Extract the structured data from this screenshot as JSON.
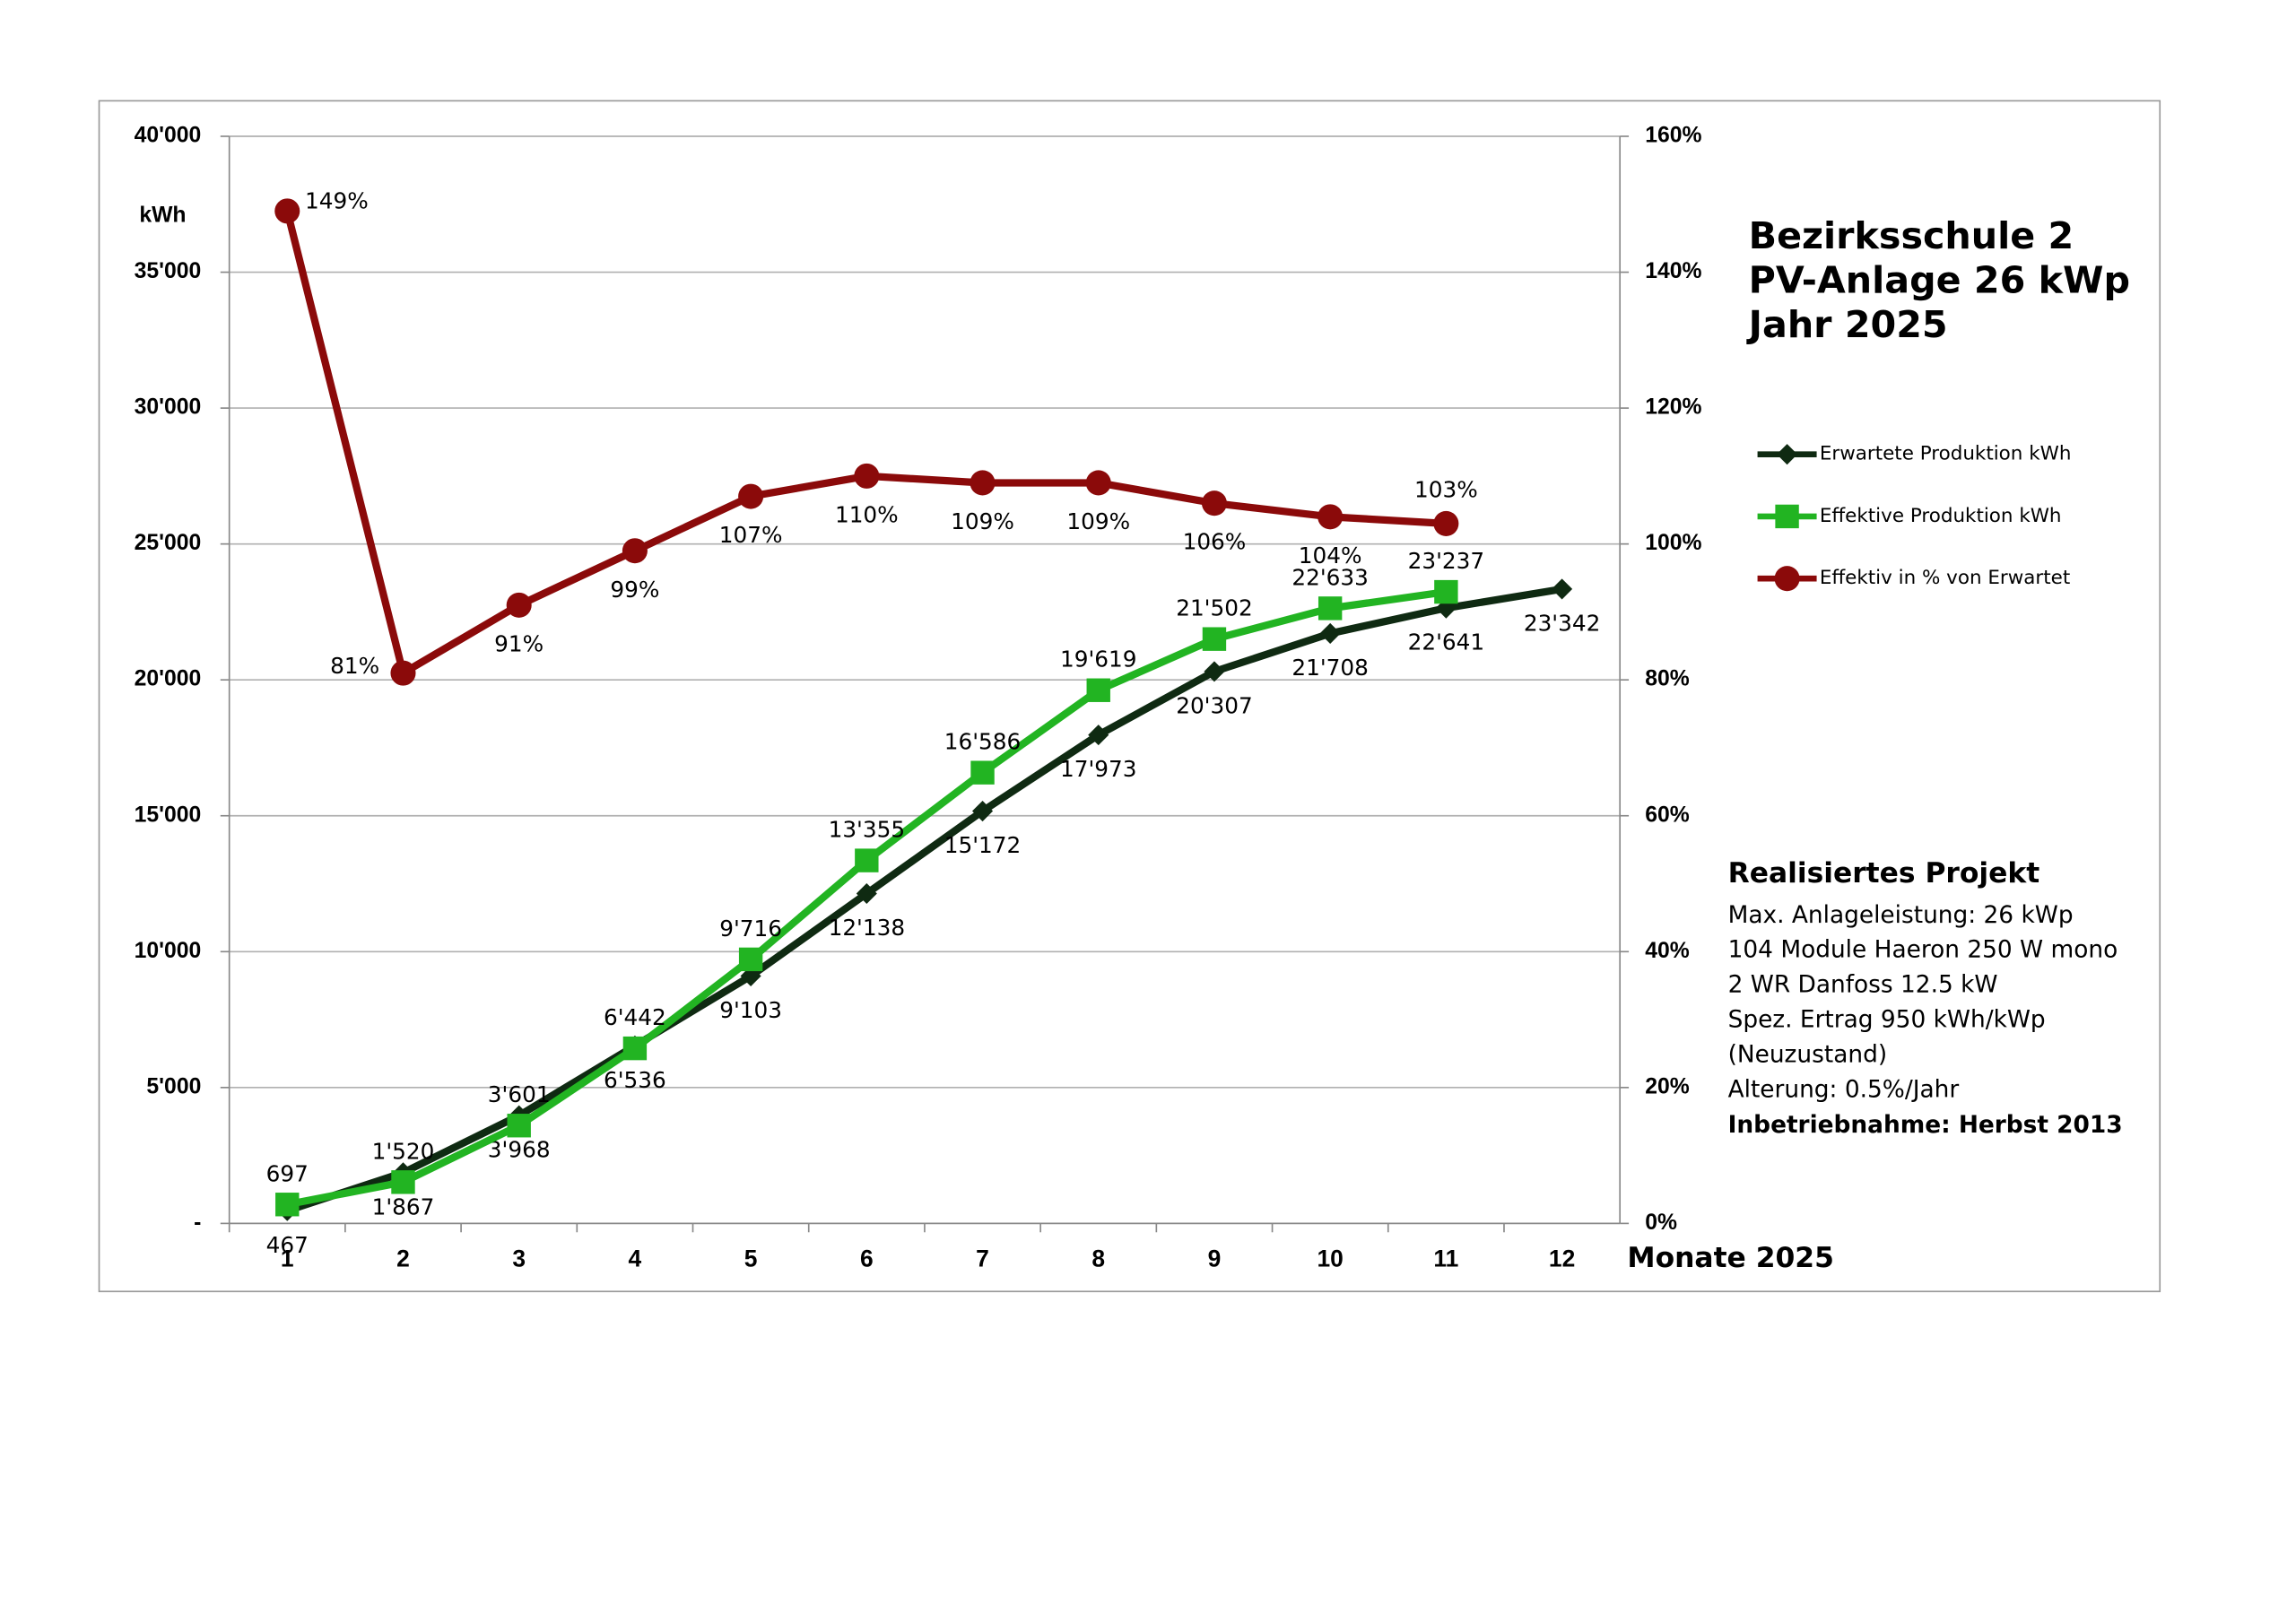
{
  "chart_data": {
    "type": "line",
    "title": [
      "Bezirksschule 2",
      "PV-Anlage 26 kWp",
      "Jahr 2025"
    ],
    "y_label": "kWh",
    "x_label": "Monate 2025",
    "categories": [
      "1",
      "2",
      "3",
      "4",
      "5",
      "6",
      "7",
      "8",
      "9",
      "10",
      "11",
      "12"
    ],
    "series": [
      {
        "name": "Erwartete Produktion kWh",
        "color": "#0f2a12",
        "marker": "diamond",
        "values": [
          467,
          1867,
          3968,
          6536,
          9103,
          12138,
          15172,
          17973,
          20307,
          21708,
          22641,
          23342
        ],
        "value_labels": [
          "467",
          "1'867",
          "3'968",
          "6'536",
          "9'103",
          "12'138",
          "15'172",
          "17'973",
          "20'307",
          "21'708",
          "22'641",
          "23'342"
        ]
      },
      {
        "name": "Effektive Produktion kWh",
        "color": "#22b422",
        "marker": "square",
        "values": [
          697,
          1520,
          3601,
          6442,
          9716,
          13355,
          16586,
          19619,
          21502,
          22633,
          23237,
          null
        ],
        "value_labels": [
          "697",
          "1'520",
          "3'601",
          "6'442",
          "9'716",
          "13'355",
          "16'586",
          "19'619",
          "21'502",
          "22'633",
          "23'237",
          null
        ]
      },
      {
        "name": "Effektiv in % von Erwartet",
        "color": "#8b0a0a",
        "marker": "circle",
        "axis": "y2",
        "values": [
          149,
          81,
          91,
          99,
          107,
          110,
          109,
          109,
          106,
          104,
          103,
          null
        ],
        "value_labels": [
          "149%",
          "81%",
          "91%",
          "99%",
          "107%",
          "110%",
          "109%",
          "109%",
          "106%",
          "104%",
          "103%",
          null
        ]
      }
    ],
    "ylim": [
      0,
      40000
    ],
    "yticks": [
      {
        "value": 0,
        "label": "-"
      },
      {
        "value": 5000,
        "label": "5'000"
      },
      {
        "value": 10000,
        "label": "10'000"
      },
      {
        "value": 15000,
        "label": "15'000"
      },
      {
        "value": 20000,
        "label": "20'000"
      },
      {
        "value": 25000,
        "label": "25'000"
      },
      {
        "value": 30000,
        "label": "30'000"
      },
      {
        "value": 35000,
        "label": "35'000"
      },
      {
        "value": 40000,
        "label": "40'000"
      }
    ],
    "y2lim": [
      0,
      160
    ],
    "y2ticks": [
      {
        "value": 0,
        "label": "0%"
      },
      {
        "value": 20,
        "label": "20%"
      },
      {
        "value": 40,
        "label": "40%"
      },
      {
        "value": 60,
        "label": "60%"
      },
      {
        "value": 80,
        "label": "80%"
      },
      {
        "value": 100,
        "label": "100%"
      },
      {
        "value": 120,
        "label": "120%"
      },
      {
        "value": 140,
        "label": "140%"
      },
      {
        "value": 160,
        "label": "160%"
      }
    ],
    "grid": true,
    "annotation": {
      "heading": "Realisiertes Projekt",
      "lines": [
        "Max. Anlageleistung: 26 kWp",
        "104 Module Haeron 250 W mono",
        "2 WR Danfoss 12.5 kW",
        "Spez. Ertrag 950 kWh/kWp",
        "(Neuzustand)",
        "Alterung: 0.5%/Jahr"
      ],
      "footer": "Inbetriebnahme: Herbst 2013"
    }
  }
}
